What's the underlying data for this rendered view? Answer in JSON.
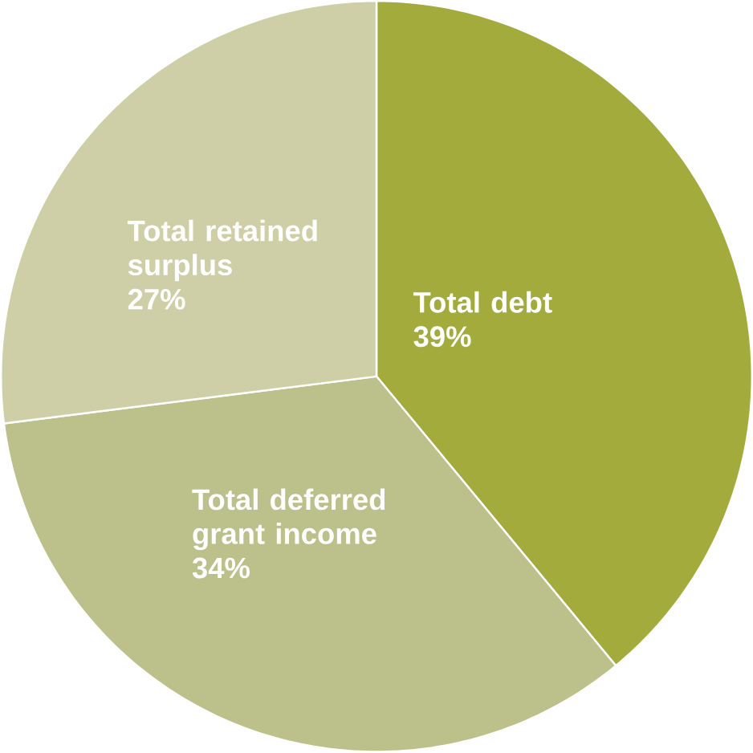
{
  "chart_data": {
    "type": "pie",
    "categories": [
      "Total debt",
      "Total deferred grant income",
      "Total retained surplus"
    ],
    "values": [
      39,
      34,
      27
    ],
    "value_labels": [
      "39%",
      "34%",
      "27%"
    ],
    "colors": [
      "#a3ab3c",
      "#bcc08a",
      "#cfcfa7"
    ]
  }
}
